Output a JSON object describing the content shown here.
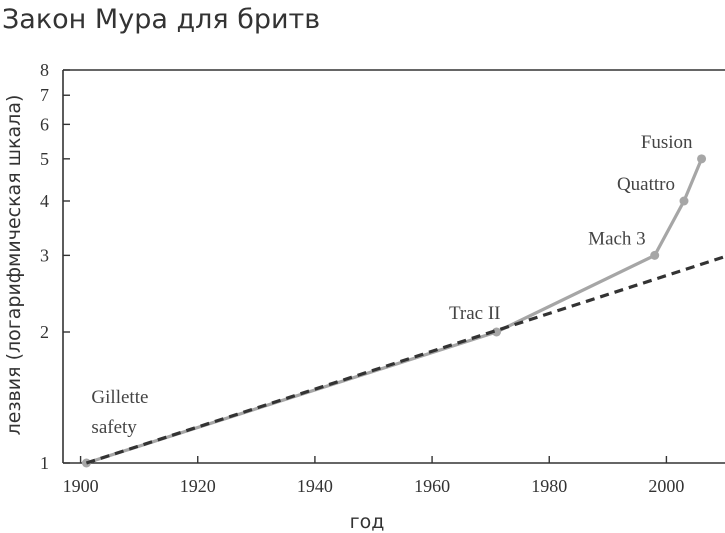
{
  "chart_data": {
    "type": "line",
    "title": "Закон Мура для бритв",
    "xlabel": "год",
    "ylabel": "лезвия (логарифмическая шкала)",
    "xlim": [
      1897,
      2010
    ],
    "ylim": [
      1,
      8
    ],
    "y_scale": "log",
    "grid": false,
    "x_ticks": [
      1900,
      1920,
      1940,
      1960,
      1980,
      2000
    ],
    "y_ticks": [
      1,
      2,
      3,
      4,
      5,
      6,
      7,
      8
    ],
    "series": [
      {
        "style": "solid",
        "color": "#a6a6a6",
        "points": [
          {
            "x": 1901,
            "y": 1,
            "label": ""
          },
          {
            "x": 1971,
            "y": 2,
            "label": "Trac II"
          },
          {
            "x": 1998,
            "y": 3,
            "label": "Mach 3"
          },
          {
            "x": 2003,
            "y": 4,
            "label": "Quattro"
          },
          {
            "x": 2006,
            "y": 5,
            "label": "Fusion"
          }
        ]
      },
      {
        "style": "dashed",
        "color": "#333333",
        "points": [
          {
            "x": 1901,
            "y": 1
          },
          {
            "x": 2010,
            "y": 2.98
          }
        ]
      }
    ],
    "annotations": [
      {
        "lines": [
          "Gillette",
          "safety"
        ],
        "x": 1901,
        "y": 1
      }
    ],
    "colors": {
      "text": "#333333",
      "axis": "#333333",
      "trend": "#333333",
      "history": "#a6a6a6"
    }
  }
}
